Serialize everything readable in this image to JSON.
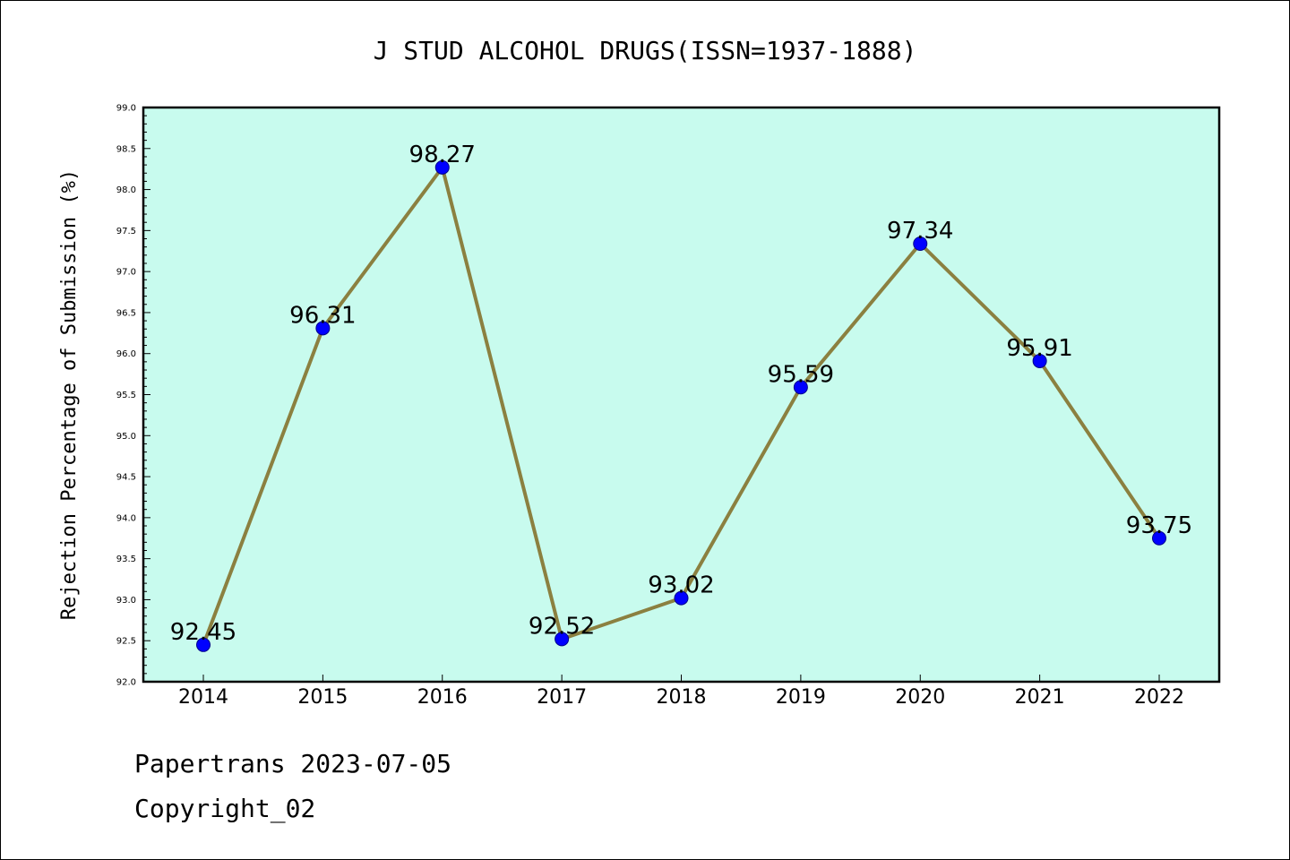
{
  "chart_data": {
    "type": "line",
    "title": "J STUD ALCOHOL DRUGS(ISSN=1937-1888)",
    "xlabel": "",
    "ylabel": "Rejection Percentage of Submission (%)",
    "categories": [
      "2014",
      "2015",
      "2016",
      "2017",
      "2018",
      "2019",
      "2020",
      "2021",
      "2022"
    ],
    "series": [
      {
        "values": [
          92.45,
          96.31,
          98.27,
          92.52,
          93.02,
          95.59,
          97.34,
          95.91,
          93.75
        ],
        "data_labels": [
          "92.45",
          "96.31",
          "98.27",
          "92.52",
          "93.02",
          "95.59",
          "97.34",
          "95.91",
          "93.75"
        ],
        "line_color": "#8b8040",
        "marker_color": "#0000ff"
      }
    ],
    "ylim": [
      92.0,
      99.0
    ],
    "yticks": [
      "92.0",
      "92.5",
      "93.0",
      "93.5",
      "94.0",
      "94.5",
      "95.0",
      "95.5",
      "96.0",
      "96.5",
      "97.0",
      "97.5",
      "98.0",
      "98.5",
      "99.0"
    ],
    "grid": false,
    "plot_background": "#c8fbee"
  },
  "footer": {
    "date_text": "Papertrans 2023-07-05",
    "copyright_text": "Copyright_02"
  }
}
